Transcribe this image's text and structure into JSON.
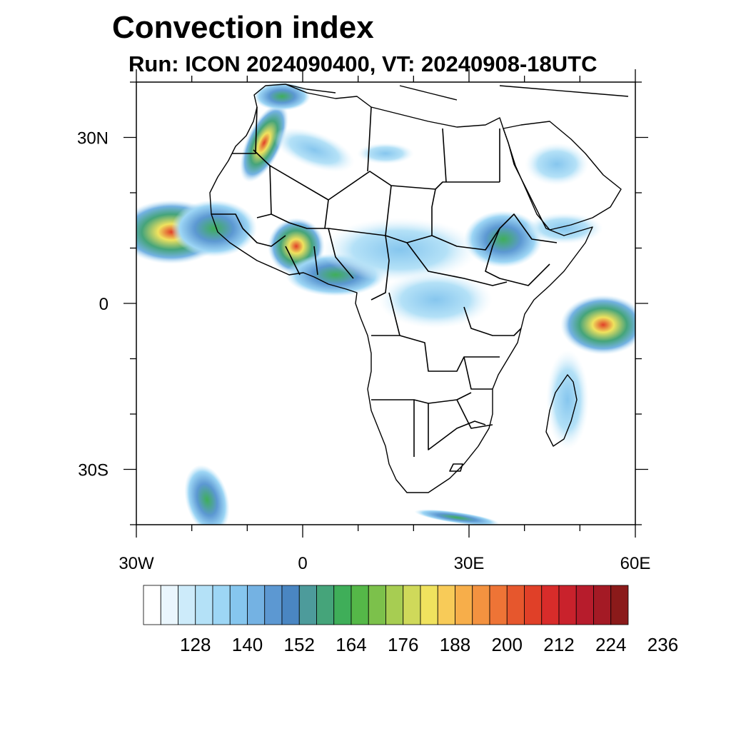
{
  "title": "Convection index",
  "subtitle": "Run: ICON 2024090400,  VT: 20240908-18UTC",
  "map": {
    "region": "Africa",
    "lon_range": [
      -30,
      60
    ],
    "lat_range": [
      -40,
      40
    ],
    "x_ticks": [
      {
        "lon": -30,
        "label": "30W"
      },
      {
        "lon": 0,
        "label": "0"
      },
      {
        "lon": 30,
        "label": "30E"
      },
      {
        "lon": 60,
        "label": "60E"
      }
    ],
    "y_ticks": [
      {
        "lat": 30,
        "label": "30N"
      },
      {
        "lat": 0,
        "label": "0"
      },
      {
        "lat": -30,
        "label": "30S"
      }
    ]
  },
  "colorbar": {
    "colors": [
      "#ffffff",
      "#eaf6fd",
      "#cdebfa",
      "#b4e1f7",
      "#9dd6f5",
      "#86c6ee",
      "#74b2e3",
      "#5c98d2",
      "#4a86c2",
      "#4d9b9b",
      "#45a47a",
      "#3fae59",
      "#55b848",
      "#7cc14b",
      "#a7cd52",
      "#cfd95a",
      "#f0e25e",
      "#f8cb58",
      "#f7ae4a",
      "#f39240",
      "#ee7436",
      "#e6572d",
      "#e04028",
      "#d82c2a",
      "#c9222c",
      "#b71c2c",
      "#a41a25",
      "#8b1a1a"
    ],
    "labels": [
      "128",
      "140",
      "152",
      "164",
      "176",
      "188",
      "200",
      "212",
      "224",
      "236"
    ]
  }
}
